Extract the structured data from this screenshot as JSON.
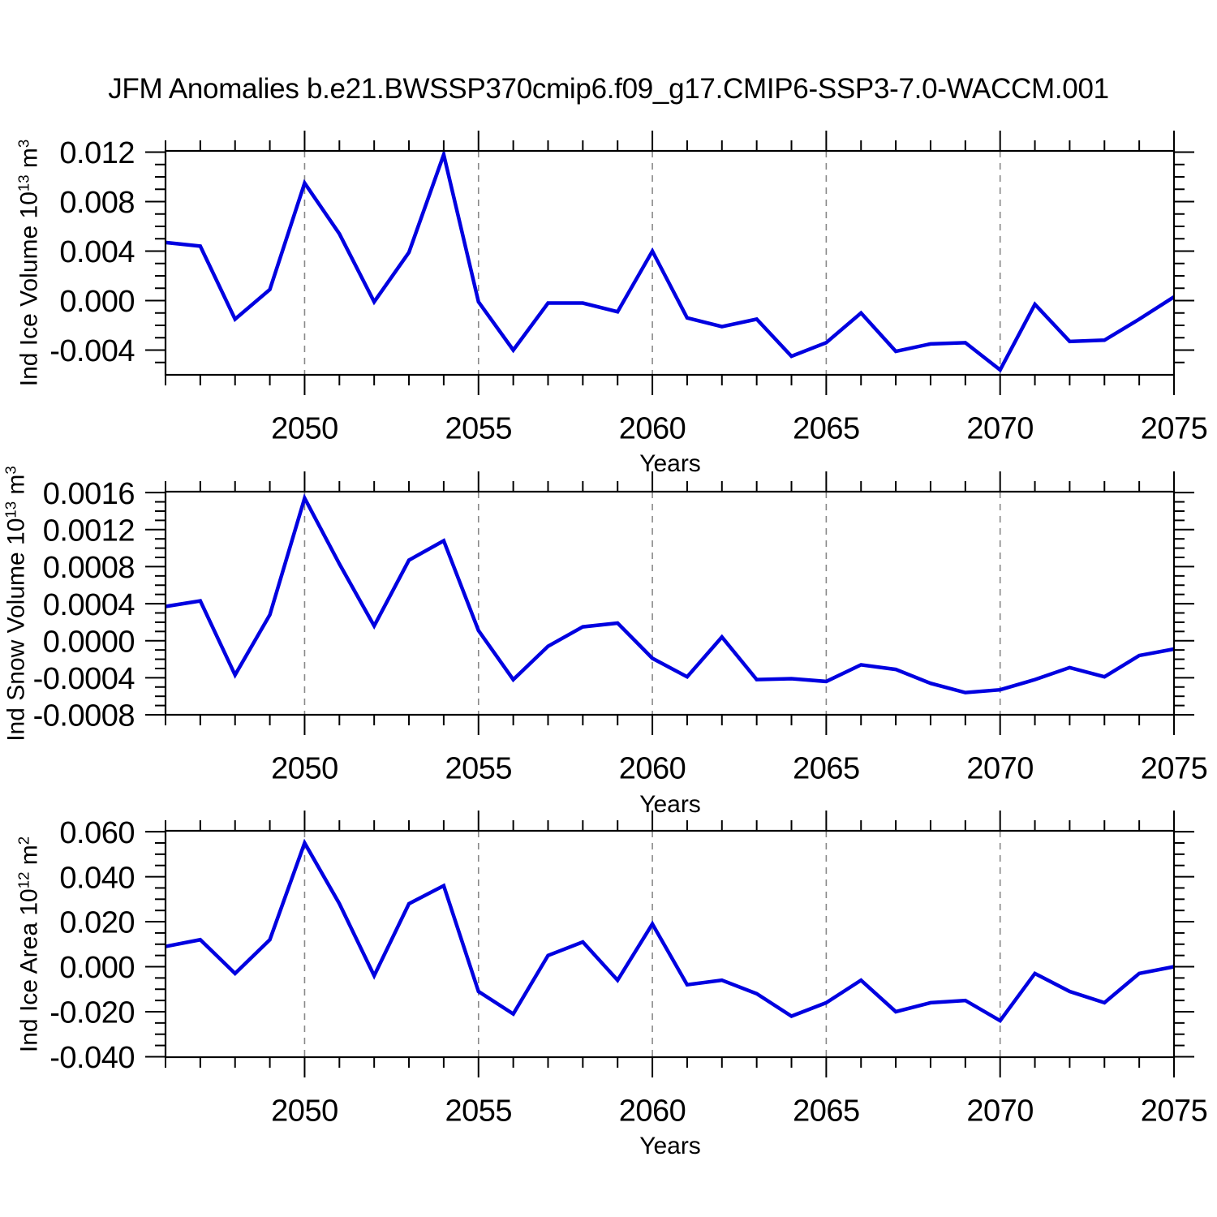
{
  "colors": {
    "line": "#0000e0",
    "frame": "#000000",
    "grid": "#888888",
    "background": "#ffffff"
  },
  "chart_data": {
    "type": "line",
    "title": "JFM Anomalies b.e21.BWSSP370cmip6.f09_g17.CMIP6-SSP3-7.0-WACCM.001",
    "xlabel": "Years",
    "legend": "none",
    "xlim": [
      2046,
      2075
    ],
    "xticks": [
      2050,
      2055,
      2060,
      2065,
      2070,
      2075
    ],
    "xtick_labels": [
      "2050",
      "2055",
      "2060",
      "2065",
      "2070",
      "2075"
    ],
    "x_minor_step": 1,
    "grid_years": [
      2050,
      2055,
      2060,
      2065,
      2070
    ],
    "x_years": [
      2046,
      2047,
      2048,
      2049,
      2050,
      2051,
      2052,
      2053,
      2054,
      2055,
      2056,
      2057,
      2058,
      2059,
      2060,
      2061,
      2062,
      2063,
      2064,
      2065,
      2066,
      2067,
      2068,
      2069,
      2070,
      2071,
      2072,
      2073,
      2074,
      2075
    ],
    "panels": [
      {
        "name": "ind-ice-volume",
        "ylabel_text": "Ind Ice Volume 10^13 m^3",
        "ylabel_pre": "Ind Ice Volume 10",
        "ylabel_sup1": "13",
        "ylabel_mid": " m",
        "ylabel_sup2": "3",
        "ylim": [
          -0.006,
          0.0121
        ],
        "ytick_values": [
          0.012,
          0.008,
          0.004,
          0.0,
          -0.004
        ],
        "ytick_labels": [
          "0.012",
          "0.008",
          "0.004",
          "0.000",
          "-0.004"
        ],
        "y_minor_step": 0.001,
        "ytick_minor": [
          -0.005,
          -0.003,
          -0.002,
          -0.001,
          0.001,
          0.002,
          0.003,
          0.005,
          0.006,
          0.007,
          0.009,
          0.01,
          0.011
        ],
        "values": [
          0.0047,
          0.0044,
          -0.0015,
          0.0009,
          0.0095,
          0.0054,
          -0.0001,
          0.0039,
          0.0118,
          -0.0001,
          -0.004,
          -0.0002,
          -0.0002,
          -0.0009,
          0.004,
          -0.0014,
          -0.0021,
          -0.0015,
          -0.0045,
          -0.0034,
          -0.001,
          -0.0041,
          -0.0035,
          -0.0034,
          -0.0056,
          -0.0003,
          -0.0033,
          -0.0032,
          -0.0015,
          0.0003
        ]
      },
      {
        "name": "ind-snow-volume",
        "ylabel_text": "Ind Snow Volume 10^13 m^3",
        "ylabel_pre": "Ind Snow Volume 10",
        "ylabel_sup1": "13",
        "ylabel_mid": " m",
        "ylabel_sup2": "3",
        "ylim": [
          -0.0008,
          0.00161
        ],
        "ytick_values": [
          0.0016,
          0.0012,
          0.0008,
          0.0004,
          0.0,
          -0.0004,
          -0.0008
        ],
        "ytick_labels": [
          "0.0016",
          "0.0012",
          "0.0008",
          "0.0004",
          "0.0000",
          "-0.0004",
          "-0.0008"
        ],
        "y_minor_step": 0.0001,
        "ytick_minor": [
          -0.0007,
          -0.0006,
          -0.0005,
          -0.0003,
          -0.0002,
          -0.0001,
          0.0001,
          0.0002,
          0.0003,
          0.0005,
          0.0006,
          0.0007,
          0.0009,
          0.001,
          0.0011,
          0.0013,
          0.0014,
          0.0015
        ],
        "values": [
          0.00037,
          0.00043,
          -0.00037,
          0.00028,
          0.00154,
          0.00083,
          0.00016,
          0.00087,
          0.00108,
          0.00011,
          -0.00042,
          -6e-05,
          0.00015,
          0.00019,
          -0.00019,
          -0.00039,
          4e-05,
          -0.00042,
          -0.00041,
          -0.00044,
          -0.00026,
          -0.00031,
          -0.00046,
          -0.00056,
          -0.00053,
          -0.00042,
          -0.00029,
          -0.00039,
          -0.00016,
          -9e-05
        ]
      },
      {
        "name": "ind-ice-area",
        "ylabel_text": "Ind Ice Area 10^12 m^2",
        "ylabel_pre": "Ind Ice Area 10",
        "ylabel_sup1": "12",
        "ylabel_mid": " m",
        "ylabel_sup2": "2",
        "ylim": [
          -0.0402,
          0.0604
        ],
        "ytick_values": [
          0.06,
          0.04,
          0.02,
          0.0,
          -0.02,
          -0.04
        ],
        "ytick_labels": [
          "0.060",
          "0.040",
          "0.020",
          "0.000",
          "-0.020",
          "-0.040"
        ],
        "y_minor_step": 0.005,
        "ytick_minor": [
          -0.035,
          -0.03,
          -0.025,
          -0.015,
          -0.01,
          -0.005,
          0.005,
          0.01,
          0.015,
          0.025,
          0.03,
          0.035,
          0.045,
          0.05,
          0.055
        ],
        "values": [
          0.009,
          0.012,
          -0.003,
          0.012,
          0.055,
          0.028,
          -0.004,
          0.028,
          0.036,
          -0.011,
          -0.021,
          0.005,
          0.011,
          -0.006,
          0.019,
          -0.008,
          -0.006,
          -0.012,
          -0.022,
          -0.016,
          -0.006,
          -0.02,
          -0.016,
          -0.015,
          -0.024,
          -0.003,
          -0.011,
          -0.016,
          -0.003,
          0.0
        ]
      }
    ]
  }
}
